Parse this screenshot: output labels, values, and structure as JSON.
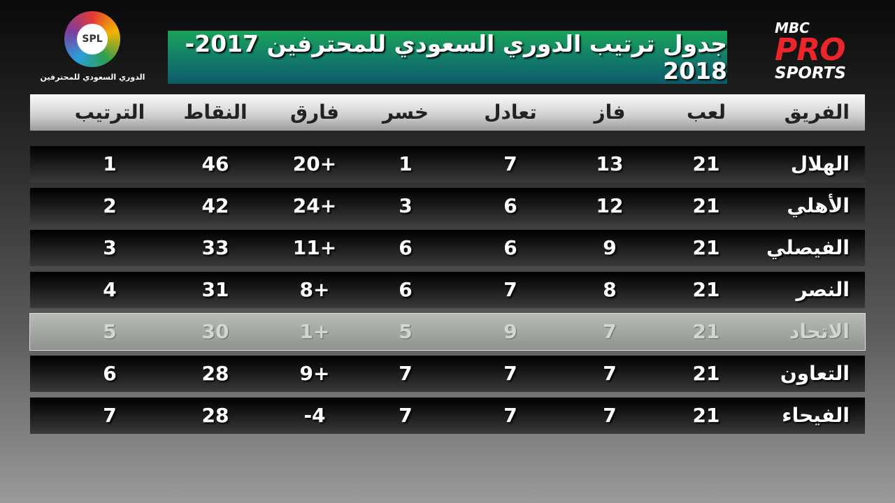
{
  "header": {
    "title": "جدول ترتيب الدوري السعودي للمحترفين 2017-2018",
    "left_logo": {
      "mark": "SPL",
      "caption": "الدوري السعودي للمحترفين"
    },
    "right_logo": {
      "line1": "MBC",
      "line2": "PRO",
      "line3": "SPORTS"
    }
  },
  "table": {
    "columns": [
      "الفريق",
      "لعب",
      "فاز",
      "تعادل",
      "خسر",
      "فارق",
      "النقاط",
      "الترتيب"
    ],
    "rows": [
      [
        "الهلال",
        "21",
        "13",
        "7",
        "1",
        "20+",
        "46",
        "1"
      ],
      [
        "الأهلي",
        "21",
        "12",
        "6",
        "3",
        "24+",
        "42",
        "2"
      ],
      [
        "الفيصلي",
        "21",
        "9",
        "6",
        "6",
        "11+",
        "33",
        "3"
      ],
      [
        "النصر",
        "21",
        "8",
        "7",
        "6",
        "8+",
        "31",
        "4"
      ],
      [
        "الاتحاد",
        "21",
        "7",
        "9",
        "5",
        "1+",
        "30",
        "5"
      ],
      [
        "التعاون",
        "21",
        "7",
        "7",
        "7",
        "9+",
        "28",
        "6"
      ],
      [
        "الفيحاء",
        "21",
        "7",
        "7",
        "7",
        "-4",
        "28",
        "7"
      ]
    ]
  }
}
